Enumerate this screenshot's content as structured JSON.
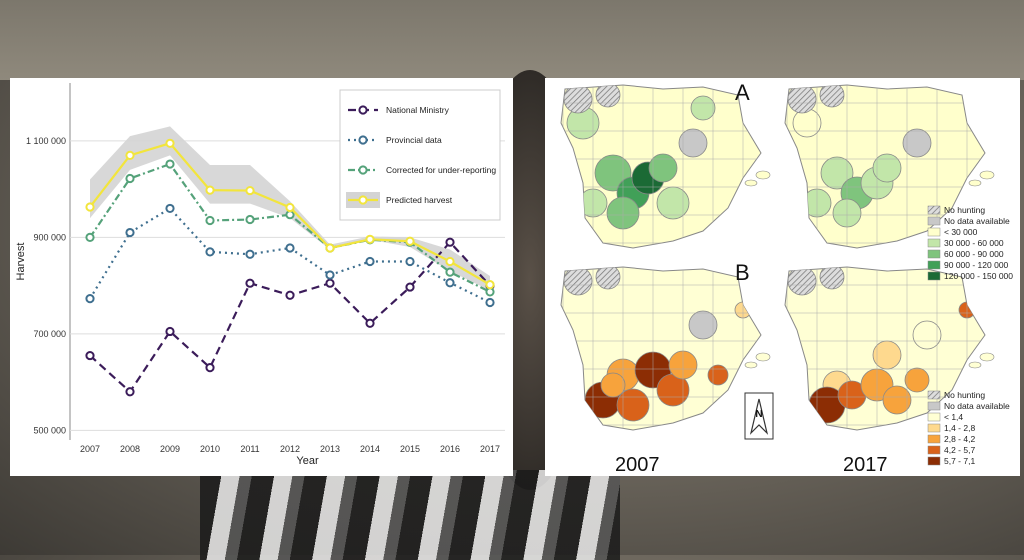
{
  "chart_data": [
    {
      "type": "line",
      "xlabel": "Year",
      "ylabel": "Harvest",
      "x": [
        2007,
        2008,
        2009,
        2010,
        2011,
        2012,
        2013,
        2014,
        2015,
        2016,
        2017
      ],
      "x_tick_labels": [
        "2007",
        "2008",
        "2009",
        "2010",
        "2011",
        "2012",
        "2013",
        "2014",
        "2015",
        "2016",
        "2017"
      ],
      "y_ticks": [
        500000,
        700000,
        900000,
        1100000
      ],
      "y_tick_labels": [
        "500 000",
        "700 000",
        "900 000",
        "1 100 000"
      ],
      "ylim": [
        480000,
        1220000
      ],
      "grid": true,
      "legend_position": "top-right",
      "band": {
        "lower": [
          940000,
          1040000,
          1070000,
          970000,
          970000,
          940000,
          875000,
          895000,
          880000,
          830000,
          790000
        ],
        "upper": [
          1020000,
          1110000,
          1130000,
          1050000,
          1050000,
          975000,
          885000,
          902000,
          900000,
          875000,
          820000
        ]
      },
      "series": [
        {
          "name": "National Ministry",
          "color": "#3b1c5a",
          "dash": "dashed",
          "values": [
            655000,
            580000,
            705000,
            630000,
            805000,
            780000,
            805000,
            722000,
            797000,
            890000,
            800000
          ]
        },
        {
          "name": "Provincial data",
          "color": "#3f6f8f",
          "dash": "dotted",
          "values": [
            773000,
            910000,
            960000,
            870000,
            865000,
            878000,
            822000,
            850000,
            850000,
            806000,
            765000
          ]
        },
        {
          "name": "Corrected for under-reporting",
          "color": "#55a27a",
          "dash": "dashdot",
          "values": [
            900000,
            1022000,
            1052000,
            935000,
            937000,
            947000,
            878000,
            895000,
            890000,
            828000,
            787000
          ]
        },
        {
          "name": "Predicted harvest",
          "color": "#f2e53c",
          "dash": "solid",
          "values": [
            963000,
            1070000,
            1095000,
            998000,
            997000,
            962000,
            878000,
            896000,
            892000,
            850000,
            802000
          ]
        }
      ]
    }
  ],
  "maps": {
    "labels": {
      "a": "A",
      "b": "B",
      "year_left": "2007",
      "year_right": "2017",
      "north": "N"
    },
    "legend_a": {
      "items": [
        {
          "label": "No hunting",
          "color": "hatch"
        },
        {
          "label": "No data available",
          "color": "#c8c8c8"
        },
        {
          "label": "< 30 000",
          "color": "#ffffcc"
        },
        {
          "label": "30 000 - 60 000",
          "color": "#c2e6a9"
        },
        {
          "label": "60 000 - 90 000",
          "color": "#7fc47d"
        },
        {
          "label": "90 000 - 120 000",
          "color": "#41a058"
        },
        {
          "label": "120 000 - 150 000",
          "color": "#1b6a35"
        }
      ]
    },
    "legend_b": {
      "items": [
        {
          "label": "No hunting",
          "color": "hatch"
        },
        {
          "label": "No data available",
          "color": "#c8c8c8"
        },
        {
          "label": "< 1,4",
          "color": "#ffffd4"
        },
        {
          "label": "1,4 - 2,8",
          "color": "#fed98e"
        },
        {
          "label": "2,8 - 4,2",
          "color": "#f7a33c"
        },
        {
          "label": "4,2 - 5,7",
          "color": "#d9621a"
        },
        {
          "label": "5,7 - 7,1",
          "color": "#8c2d04"
        }
      ]
    }
  }
}
